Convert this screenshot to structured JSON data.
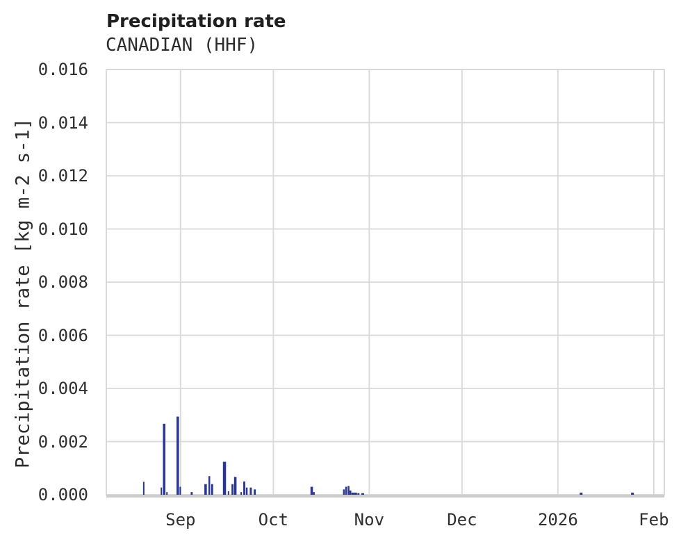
{
  "page": {
    "background": "#ffffff"
  },
  "header": {
    "title": "Precipitation rate",
    "subtitle": "CANADIAN (HHF)"
  },
  "chart_data": {
    "type": "bar",
    "title": "Precipitation rate",
    "subtitle": "CANADIAN (HHF)",
    "xlabel": "",
    "ylabel": "Precipitation rate [kg m-2 s-1]",
    "ylim": [
      0,
      0.016
    ],
    "grid": true,
    "legend": false,
    "yticks": [
      {
        "label": "0.000",
        "value": 0.0
      },
      {
        "label": "0.002",
        "value": 0.002
      },
      {
        "label": "0.004",
        "value": 0.004
      },
      {
        "label": "0.006",
        "value": 0.006
      },
      {
        "label": "0.008",
        "value": 0.008
      },
      {
        "label": "0.010",
        "value": 0.01
      },
      {
        "label": "0.012",
        "value": 0.012
      },
      {
        "label": "0.014",
        "value": 0.014
      },
      {
        "label": "0.016",
        "value": 0.016
      }
    ],
    "x_axis": {
      "unit": "date",
      "start_label": "Aug 8",
      "end_label": "Feb 4",
      "span_days": 180.4,
      "ticks": [
        {
          "label": "Sep",
          "day": 24
        },
        {
          "label": "Oct",
          "day": 54
        },
        {
          "label": "Nov",
          "day": 85
        },
        {
          "label": "Dec",
          "day": 115
        },
        {
          "label": "2026",
          "day": 146
        },
        {
          "label": "Feb",
          "day": 177
        }
      ]
    },
    "series": [
      {
        "name": "precipitation rate",
        "points": [
          {
            "date": "Aug 20",
            "day": 12.1,
            "value": 0.00049,
            "width_days": 0.45
          },
          {
            "date": "Aug 26",
            "day": 17.8,
            "value": 0.00027,
            "width_days": 0.45
          },
          {
            "date": "Aug 27",
            "day": 18.7,
            "value": 0.00267,
            "width_days": 0.8
          },
          {
            "date": "Aug 28",
            "day": 19.6,
            "value": 0.0001,
            "width_days": 0.45
          },
          {
            "date": "Aug 31",
            "day": 23.1,
            "value": 0.00294,
            "width_days": 0.8
          },
          {
            "date": "Sep 1",
            "day": 23.9,
            "value": 0.0003,
            "width_days": 0.45
          },
          {
            "date": "Sep 5",
            "day": 27.6,
            "value": 0.0001,
            "width_days": 0.65
          },
          {
            "date": "Sep 9",
            "day": 32.1,
            "value": 0.0004,
            "width_days": 0.8
          },
          {
            "date": "Sep 10",
            "day": 33.3,
            "value": 0.0007,
            "width_days": 0.55
          },
          {
            "date": "Sep 11",
            "day": 34.2,
            "value": 0.0004,
            "width_days": 0.65
          },
          {
            "date": "Sep 15",
            "day": 38.2,
            "value": 0.00124,
            "width_days": 1.0
          },
          {
            "date": "Sep 17",
            "day": 39.5,
            "value": 0.00013,
            "width_days": 0.45
          },
          {
            "date": "Sep 18",
            "day": 40.8,
            "value": 0.0004,
            "width_days": 0.65
          },
          {
            "date": "Sep 19",
            "day": 41.7,
            "value": 0.00067,
            "width_days": 0.8
          },
          {
            "date": "Sep 21",
            "day": 43.6,
            "value": 0.0001,
            "width_days": 0.45
          },
          {
            "date": "Sep 22",
            "day": 44.6,
            "value": 0.0005,
            "width_days": 0.65
          },
          {
            "date": "Sep 23",
            "day": 45.4,
            "value": 0.00027,
            "width_days": 0.55
          },
          {
            "date": "Sep 24",
            "day": 46.7,
            "value": 0.00027,
            "width_days": 0.65
          },
          {
            "date": "Sep 25",
            "day": 48.0,
            "value": 0.0002,
            "width_days": 0.65
          },
          {
            "date": "Oct 13",
            "day": 66.4,
            "value": 0.0003,
            "width_days": 0.8
          },
          {
            "date": "Oct 14",
            "day": 67.1,
            "value": 0.0001,
            "width_days": 0.55
          },
          {
            "date": "Oct 24",
            "day": 76.8,
            "value": 0.0002,
            "width_days": 0.55
          },
          {
            "date": "Oct 25",
            "day": 77.5,
            "value": 0.0003,
            "width_days": 0.55
          },
          {
            "date": "Oct 25",
            "day": 78.3,
            "value": 0.00033,
            "width_days": 0.6
          },
          {
            "date": "Oct 26",
            "day": 78.9,
            "value": 0.00016,
            "width_days": 0.6
          },
          {
            "date": "Oct 27",
            "day": 79.7,
            "value": 8e-05,
            "width_days": 0.9
          },
          {
            "date": "Oct 28",
            "day": 80.6,
            "value": 8e-05,
            "width_days": 0.9
          },
          {
            "date": "Oct 28",
            "day": 81.5,
            "value": 6e-05,
            "width_days": 0.65
          },
          {
            "date": "Oct 30",
            "day": 82.9,
            "value": 6e-05,
            "width_days": 0.9
          },
          {
            "date": "Jan 8",
            "day": 153.5,
            "value": 8e-05,
            "width_days": 0.9
          },
          {
            "date": "Jan 25",
            "day": 170.1,
            "value": 8e-05,
            "width_days": 0.9
          }
        ]
      }
    ],
    "colors": {
      "bar": "#28359d",
      "grid": "#d9d9d9",
      "border": "#d9d9d9",
      "bottom_spine": "#cdcdcd",
      "tick_text": "#2f2f2f",
      "title_text": "#1f1f1f"
    }
  }
}
